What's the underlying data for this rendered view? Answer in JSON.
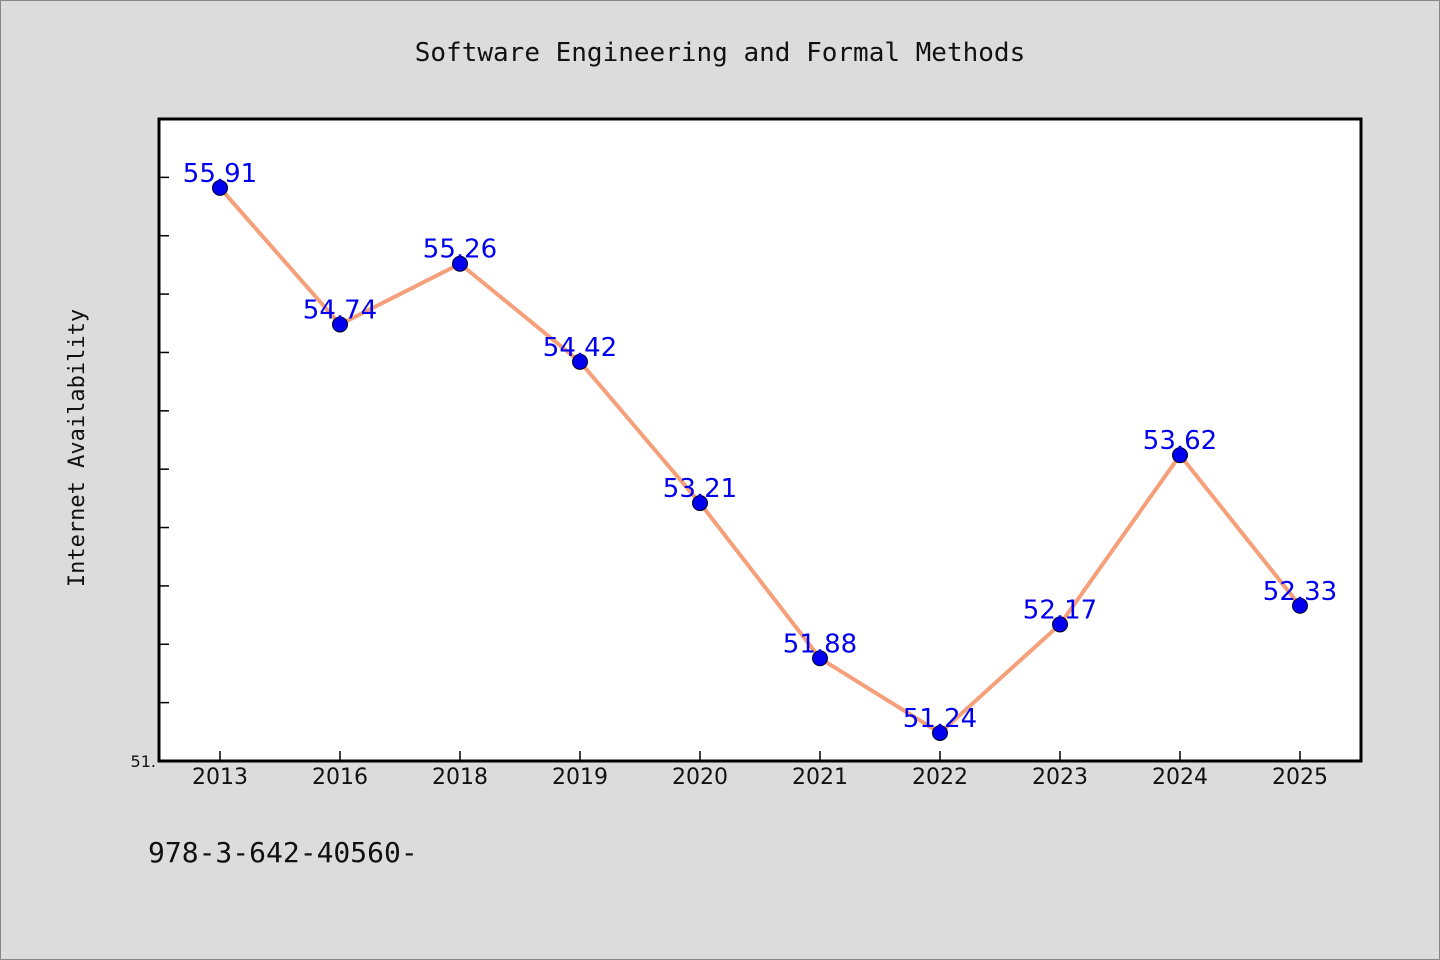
{
  "chart_data": {
    "type": "line",
    "title": "Software Engineering and Formal Methods",
    "xlabel": "",
    "ylabel": "Internet Availability",
    "categories": [
      "2013",
      "2016",
      "2018",
      "2019",
      "2020",
      "2021",
      "2022",
      "2023",
      "2024",
      "2025"
    ],
    "series": [
      {
        "values": [
          55.91,
          54.74,
          55.26,
          54.42,
          53.21,
          51.88,
          51.24,
          52.17,
          53.62,
          52.33
        ],
        "labels": [
          "55.91",
          "54.74",
          "55.26",
          "54.42",
          "53.21",
          "51.88",
          "51.24",
          "52.17",
          "53.62",
          "52.33"
        ],
        "line_color": "#f5a07a",
        "marker_color": "#0000ee",
        "label_color": "#0000ee"
      }
    ],
    "ylim": [
      51.0,
      56.5
    ],
    "y_tick_label": "51.",
    "grid": false
  },
  "footer": {
    "text": "978-3-642-40560-"
  }
}
